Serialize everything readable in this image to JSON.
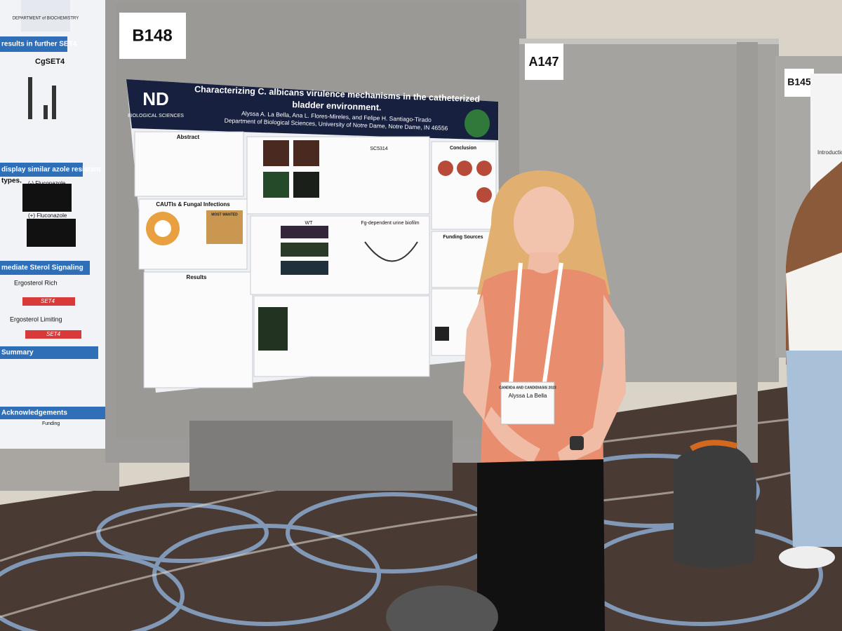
{
  "board_labels": [
    "B148",
    "A147",
    "B145"
  ],
  "poster": {
    "logo": "BIOLOGICAL SCIENCES",
    "title": [
      "Characterizing C. albicans virulence mechanisms in the catheterized",
      "bladder environment."
    ],
    "authors": "Alyssa A. La Bella, Ana L. Flores-Mireles, and Felipe H. Santiago-Tirado",
    "affiliation": "Department of Biological Sciences, University of Notre Dame, Notre Dame, IN 46556",
    "sections": [
      "Abstract",
      "CAUTIs & Fungal Infections",
      "Results",
      "SC5314",
      "WT",
      "Fg-dependent urine biofilm",
      "Conclusion",
      "Funding Sources",
      "MOST WANTED"
    ]
  },
  "left_poster": {
    "header": "DEPARTMENT of BIOCHEMISTRY",
    "items": [
      "results in further SET4",
      "CgSET4",
      "display similar azole resistant",
      "types.",
      "(-) Fluconazole",
      "(+) Fluconazole",
      "mediate Sterol Signaling",
      "Ergosterol Rich",
      "SET4",
      "Ergosterol Limiting",
      "SET4",
      "Summary",
      "Acknowledgements",
      "Funding"
    ]
  },
  "right_poster": {
    "heading": "Introduction"
  },
  "badge": {
    "event": "CANDIDA AND CANDIDIASIS 2023",
    "name": "Alyssa La Bella"
  }
}
